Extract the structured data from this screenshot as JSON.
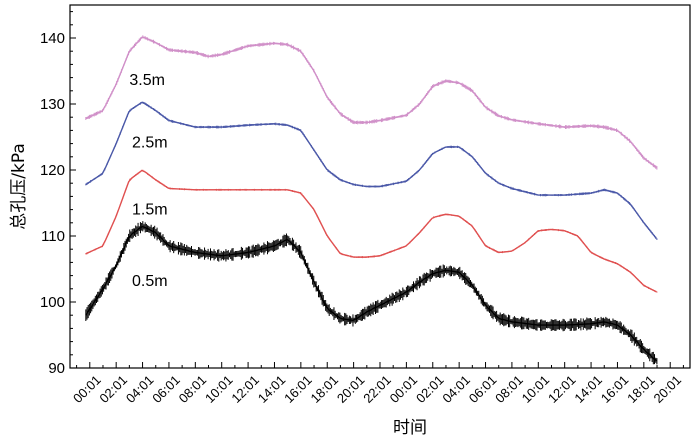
{
  "chart_data": {
    "type": "line",
    "title": "",
    "ylabel": "总孔压/kPa",
    "xlabel": "时间",
    "ylim": [
      90,
      145
    ],
    "yticks": [
      90,
      100,
      110,
      120,
      130,
      140
    ],
    "xlim": [
      -1.5,
      45.5
    ],
    "x_tick_labels": [
      "00:01",
      "02:01",
      "04:01",
      "06:01",
      "08:01",
      "10:01",
      "12:01",
      "14:01",
      "16:01",
      "18:01",
      "20:01",
      "22:01",
      "00:01",
      "02:01",
      "04:01",
      "06:01",
      "08:01",
      "10:01",
      "12:01",
      "14:01",
      "16:01",
      "18:01",
      "20:01"
    ],
    "x_tick_hours": [
      0,
      2,
      4,
      6,
      8,
      10,
      12,
      14,
      16,
      18,
      20,
      22,
      24,
      26,
      28,
      30,
      32,
      34,
      36,
      38,
      40,
      42,
      44
    ],
    "grid": false,
    "legend": "none",
    "series": [
      {
        "name": "3.5m",
        "color": "#d08fc8",
        "noise": 0.6,
        "points": [
          [
            -0.3,
            127.8
          ],
          [
            1,
            129
          ],
          [
            2,
            133
          ],
          [
            3,
            138
          ],
          [
            4,
            140.2
          ],
          [
            5,
            139.3
          ],
          [
            6,
            138.2
          ],
          [
            8,
            137.8
          ],
          [
            9,
            137.2
          ],
          [
            10,
            137.5
          ],
          [
            12,
            138.8
          ],
          [
            14,
            139.2
          ],
          [
            15,
            139
          ],
          [
            16,
            138
          ],
          [
            17,
            135
          ],
          [
            18,
            131
          ],
          [
            19,
            128.5
          ],
          [
            20,
            127.2
          ],
          [
            21,
            127.2
          ],
          [
            22,
            127.5
          ],
          [
            24,
            128.3
          ],
          [
            25,
            130
          ],
          [
            26,
            132.7
          ],
          [
            27,
            133.5
          ],
          [
            28,
            133.2
          ],
          [
            29,
            132
          ],
          [
            30,
            129.5
          ],
          [
            31,
            128.2
          ],
          [
            32,
            127.6
          ],
          [
            34,
            127
          ],
          [
            36,
            126.5
          ],
          [
            38,
            126.7
          ],
          [
            39,
            126.5
          ],
          [
            40,
            126
          ],
          [
            41,
            124.3
          ],
          [
            42,
            121.8
          ],
          [
            43,
            120.3
          ]
        ]
      },
      {
        "name": "2.5m",
        "color": "#4a58a8",
        "noise": 0.4,
        "points": [
          [
            -0.3,
            117.8
          ],
          [
            1,
            119.5
          ],
          [
            2,
            124
          ],
          [
            3,
            129
          ],
          [
            4,
            130.3
          ],
          [
            5,
            129
          ],
          [
            6,
            127.5
          ],
          [
            8,
            126.5
          ],
          [
            9,
            126.5
          ],
          [
            10,
            126.5
          ],
          [
            12,
            126.8
          ],
          [
            14,
            127
          ],
          [
            15,
            126.8
          ],
          [
            16,
            126
          ],
          [
            17,
            123
          ],
          [
            18,
            120
          ],
          [
            19,
            118.5
          ],
          [
            20,
            117.8
          ],
          [
            21,
            117.5
          ],
          [
            22,
            117.5
          ],
          [
            24,
            118.3
          ],
          [
            25,
            120
          ],
          [
            26,
            122.5
          ],
          [
            27,
            123.5
          ],
          [
            28,
            123.5
          ],
          [
            29,
            122
          ],
          [
            30,
            119.5
          ],
          [
            31,
            118
          ],
          [
            32,
            117.2
          ],
          [
            34,
            116.2
          ],
          [
            36,
            116.2
          ],
          [
            38,
            116.5
          ],
          [
            39,
            117
          ],
          [
            40,
            116.5
          ],
          [
            41,
            114.8
          ],
          [
            42,
            112
          ],
          [
            43,
            109.5
          ]
        ]
      },
      {
        "name": "1.5m",
        "color": "#e05050",
        "noise": 0.3,
        "points": [
          [
            -0.3,
            107.3
          ],
          [
            1,
            108.5
          ],
          [
            2,
            113
          ],
          [
            3,
            118.5
          ],
          [
            4,
            120
          ],
          [
            5,
            118.5
          ],
          [
            6,
            117.2
          ],
          [
            8,
            117
          ],
          [
            10,
            117
          ],
          [
            12,
            117
          ],
          [
            14,
            117
          ],
          [
            15,
            117
          ],
          [
            16,
            116.5
          ],
          [
            17,
            114
          ],
          [
            18,
            110
          ],
          [
            19,
            107.3
          ],
          [
            20,
            106.8
          ],
          [
            21,
            106.8
          ],
          [
            22,
            107
          ],
          [
            24,
            108.5
          ],
          [
            25,
            110.5
          ],
          [
            26,
            112.8
          ],
          [
            27,
            113.3
          ],
          [
            28,
            113
          ],
          [
            29,
            111.5
          ],
          [
            30,
            108.5
          ],
          [
            31,
            107.5
          ],
          [
            32,
            107.7
          ],
          [
            33,
            109
          ],
          [
            34,
            110.8
          ],
          [
            35,
            111
          ],
          [
            36,
            110.8
          ],
          [
            37,
            110
          ],
          [
            38,
            107.5
          ],
          [
            39,
            106.5
          ],
          [
            40,
            105.8
          ],
          [
            41,
            104.5
          ],
          [
            42,
            102.5
          ],
          [
            43,
            101.5
          ]
        ]
      },
      {
        "name": "0.5m",
        "color": "#000000",
        "noise": 2.0,
        "points": [
          [
            -0.3,
            98
          ],
          [
            1,
            102
          ],
          [
            2,
            105.5
          ],
          [
            3,
            110
          ],
          [
            4,
            111.5
          ],
          [
            5,
            110.5
          ],
          [
            6,
            108.5
          ],
          [
            8,
            107.5
          ],
          [
            10,
            107
          ],
          [
            12,
            107.5
          ],
          [
            14,
            108.5
          ],
          [
            15,
            109.5
          ],
          [
            16,
            107.5
          ],
          [
            17,
            103
          ],
          [
            18,
            99
          ],
          [
            19,
            97.5
          ],
          [
            20,
            97.2
          ],
          [
            21,
            98.5
          ],
          [
            22,
            99.5
          ],
          [
            24,
            101.5
          ],
          [
            25,
            103
          ],
          [
            26,
            104.3
          ],
          [
            27,
            104.8
          ],
          [
            28,
            104.5
          ],
          [
            29,
            102.5
          ],
          [
            30,
            99.5
          ],
          [
            31,
            97.5
          ],
          [
            32,
            97
          ],
          [
            34,
            96.5
          ],
          [
            36,
            96.5
          ],
          [
            38,
            96.7
          ],
          [
            39,
            97
          ],
          [
            40,
            96.5
          ],
          [
            41,
            95
          ],
          [
            42,
            92.8
          ],
          [
            43,
            91
          ]
        ]
      }
    ]
  }
}
